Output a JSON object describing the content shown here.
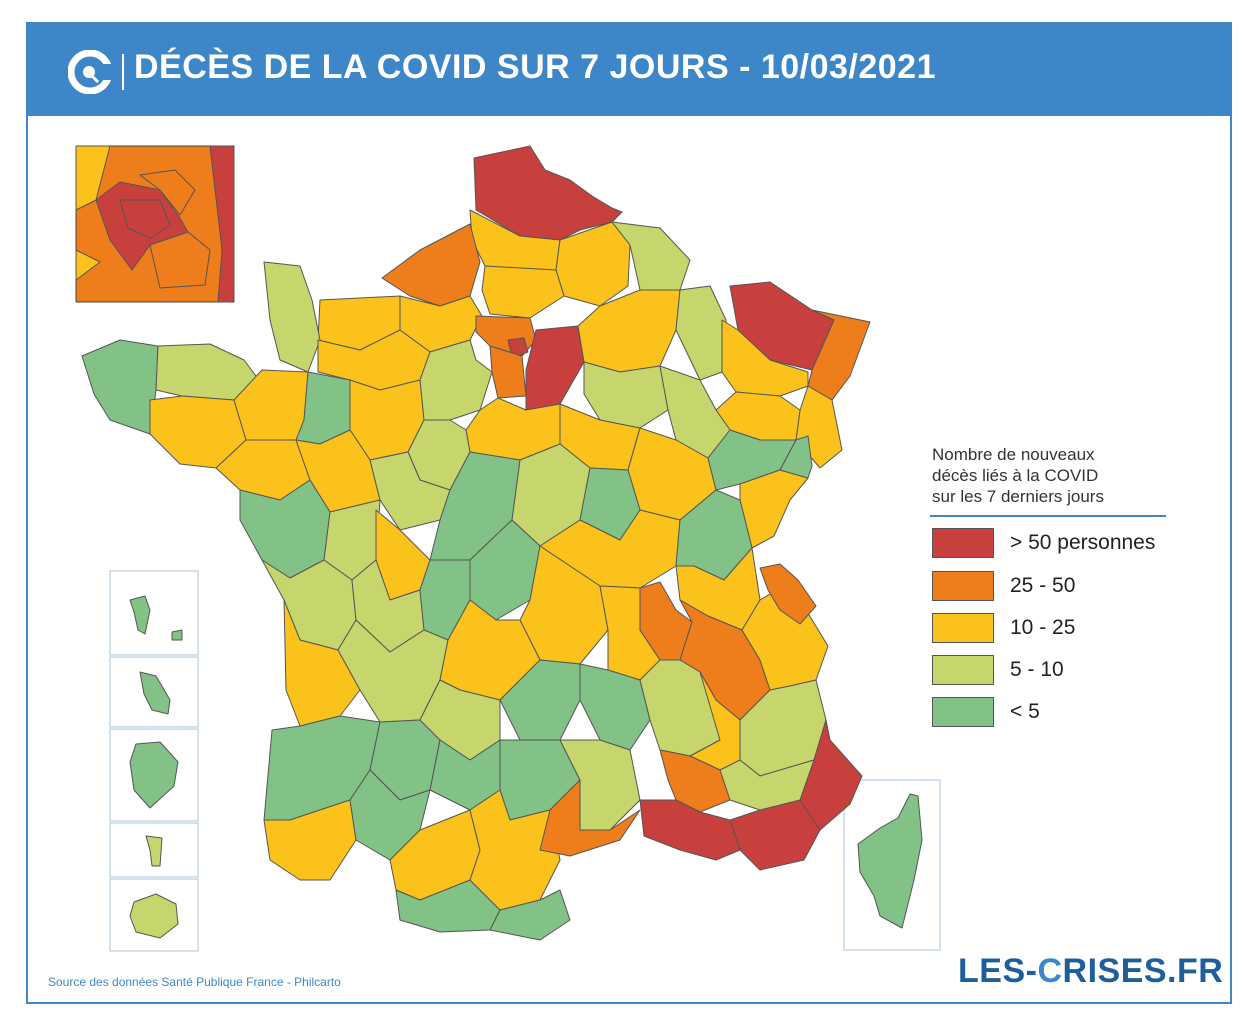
{
  "header": {
    "title": "DÉCÈS DE LA COVID SUR 7 JOURS - 10/03/2021",
    "logo_icon": "les-crises-c-logo-icon"
  },
  "legend": {
    "title_lines": [
      "Nombre de nouveaux",
      "décès liés à la COVID",
      "sur les 7 derniers jours"
    ],
    "items": [
      {
        "label": "> 50 personnes",
        "color": "#c8403d"
      },
      {
        "label": "25 - 50",
        "color": "#ee7d1c"
      },
      {
        "label": "10 - 25",
        "color": "#fcc21c"
      },
      {
        "label": "5 - 10",
        "color": "#c6d66c"
      },
      {
        "label": "< 5",
        "color": "#82c286"
      }
    ]
  },
  "source": "Source des données Santé Publique France - Philcarto",
  "brand": {
    "prefix": "LES-",
    "accent": "C",
    "suffix": "RISES.FR"
  }
}
